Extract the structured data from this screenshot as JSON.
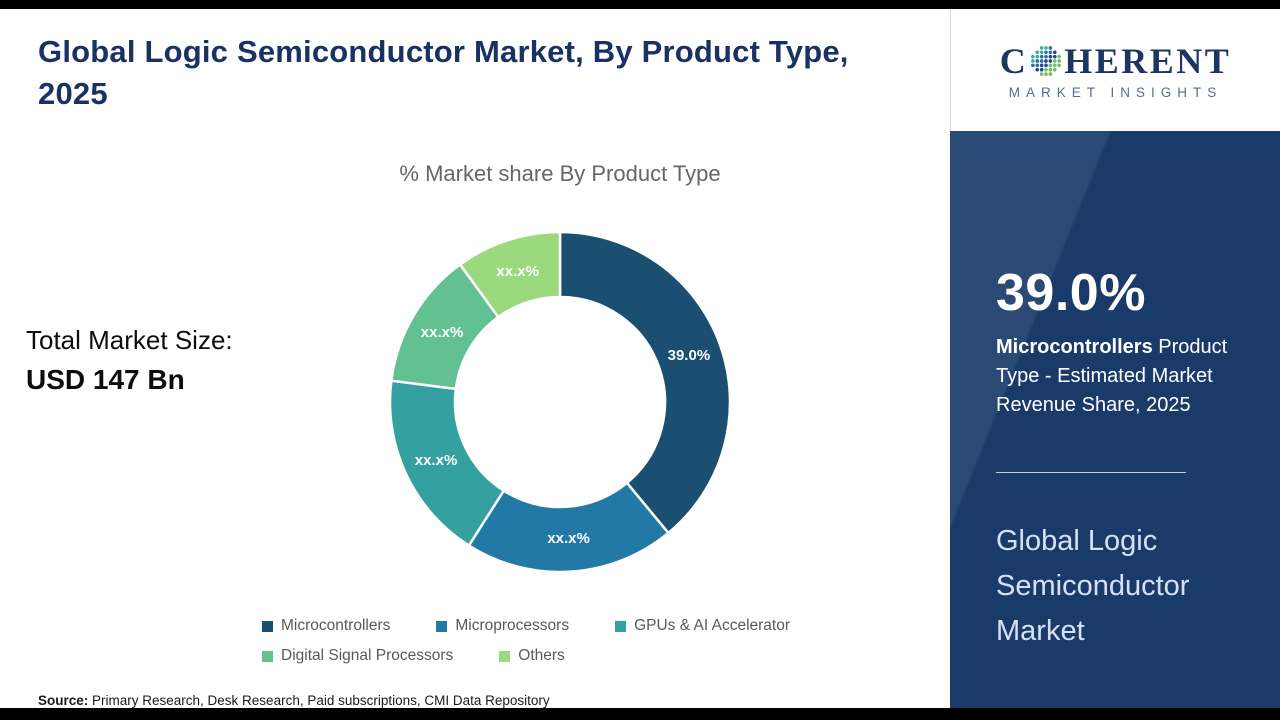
{
  "page": {
    "title": "Global Logic Semiconductor Market, By Product Type, 2025",
    "total_market_label": "Total Market Size:",
    "total_market_value": "USD 147 Bn",
    "source_label": "Source:",
    "source_text": " Primary Research, Desk Research, Paid subscriptions, CMI Data Repository"
  },
  "chart_data": {
    "type": "pie",
    "donut": true,
    "title": "% Market share By Product Type",
    "categories": [
      "Microcontrollers",
      "Microprocessors",
      "GPUs & AI Accelerator",
      "Digital Signal Processors",
      "Others"
    ],
    "values": [
      39.0,
      20.0,
      18.0,
      13.0,
      10.0
    ],
    "display_labels": [
      "39.0%",
      "xx.x%",
      "xx.x%",
      "xx.x%",
      "xx.x%"
    ],
    "colors": [
      "#1b4f72",
      "#2279a5",
      "#35a0a0",
      "#63c092",
      "#9bd97f"
    ],
    "start_angle_deg": 0,
    "direction": "clockwise",
    "legend_position": "bottom"
  },
  "sidebar": {
    "logo": {
      "brand_prefix": "C",
      "brand_suffix": "HERENT",
      "subtitle": "MARKET INSIGHTS"
    },
    "highlight_value": "39.0%",
    "highlight_bold": "Microcontrollers",
    "highlight_text": " Product Type - Estimated Market Revenue Share, 2025",
    "market_name": "Global Logic Semiconductor Market",
    "panel_color": "#1a3b69"
  }
}
